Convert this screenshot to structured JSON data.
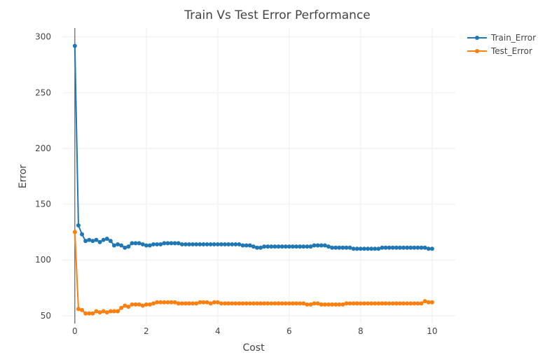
{
  "chart_data": {
    "type": "line",
    "title": "Train Vs Test Error Performance",
    "xlabel": "Cost",
    "ylabel": "Error",
    "xlim": [
      -0.35,
      10.65
    ],
    "ylim": [
      43,
      308
    ],
    "xticks": [
      0,
      2,
      4,
      6,
      8,
      10
    ],
    "yticks": [
      50,
      100,
      150,
      200,
      250,
      300
    ],
    "grid": true,
    "legend": "top-right",
    "x_step": 0.1,
    "series": [
      {
        "name": "Train_Error",
        "color": "#1f77b4",
        "values": [
          292,
          131,
          123,
          117,
          118,
          117,
          118,
          116,
          118,
          119,
          117,
          113,
          114,
          113,
          111,
          112,
          115,
          115,
          115,
          114,
          113,
          113,
          114,
          114,
          114,
          115,
          115,
          115,
          115,
          115,
          114,
          114,
          114,
          114,
          114,
          114,
          114,
          114,
          114,
          114,
          114,
          114,
          114,
          114,
          114,
          114,
          114,
          113,
          113,
          113,
          112,
          111,
          111,
          112,
          112,
          112,
          112,
          112,
          112,
          112,
          112,
          112,
          112,
          112,
          112,
          112,
          112,
          113,
          113,
          113,
          113,
          112,
          111,
          111,
          111,
          111,
          111,
          111,
          110,
          110,
          110,
          110,
          110,
          110,
          110,
          110,
          111,
          111,
          111,
          111,
          111,
          111,
          111,
          111,
          111,
          111,
          111,
          111,
          111,
          110,
          110
        ]
      },
      {
        "name": "Test_Error",
        "color": "#ff7f0e",
        "values": [
          125,
          56,
          55,
          52,
          52,
          52,
          54,
          53,
          54,
          53,
          54,
          54,
          54,
          57,
          59,
          58,
          60,
          60,
          60,
          59,
          60,
          60,
          61,
          62,
          62,
          62,
          62,
          62,
          62,
          61,
          61,
          61,
          61,
          61,
          61,
          62,
          62,
          62,
          61,
          62,
          62,
          61,
          61,
          61,
          61,
          61,
          61,
          61,
          61,
          61,
          61,
          61,
          61,
          61,
          61,
          61,
          61,
          61,
          61,
          61,
          61,
          61,
          61,
          61,
          61,
          60,
          60,
          61,
          61,
          60,
          60,
          60,
          60,
          60,
          60,
          60,
          61,
          61,
          61,
          61,
          61,
          61,
          61,
          61,
          61,
          61,
          61,
          61,
          61,
          61,
          61,
          61,
          61,
          61,
          61,
          61,
          61,
          61,
          63,
          62,
          62
        ]
      }
    ]
  }
}
